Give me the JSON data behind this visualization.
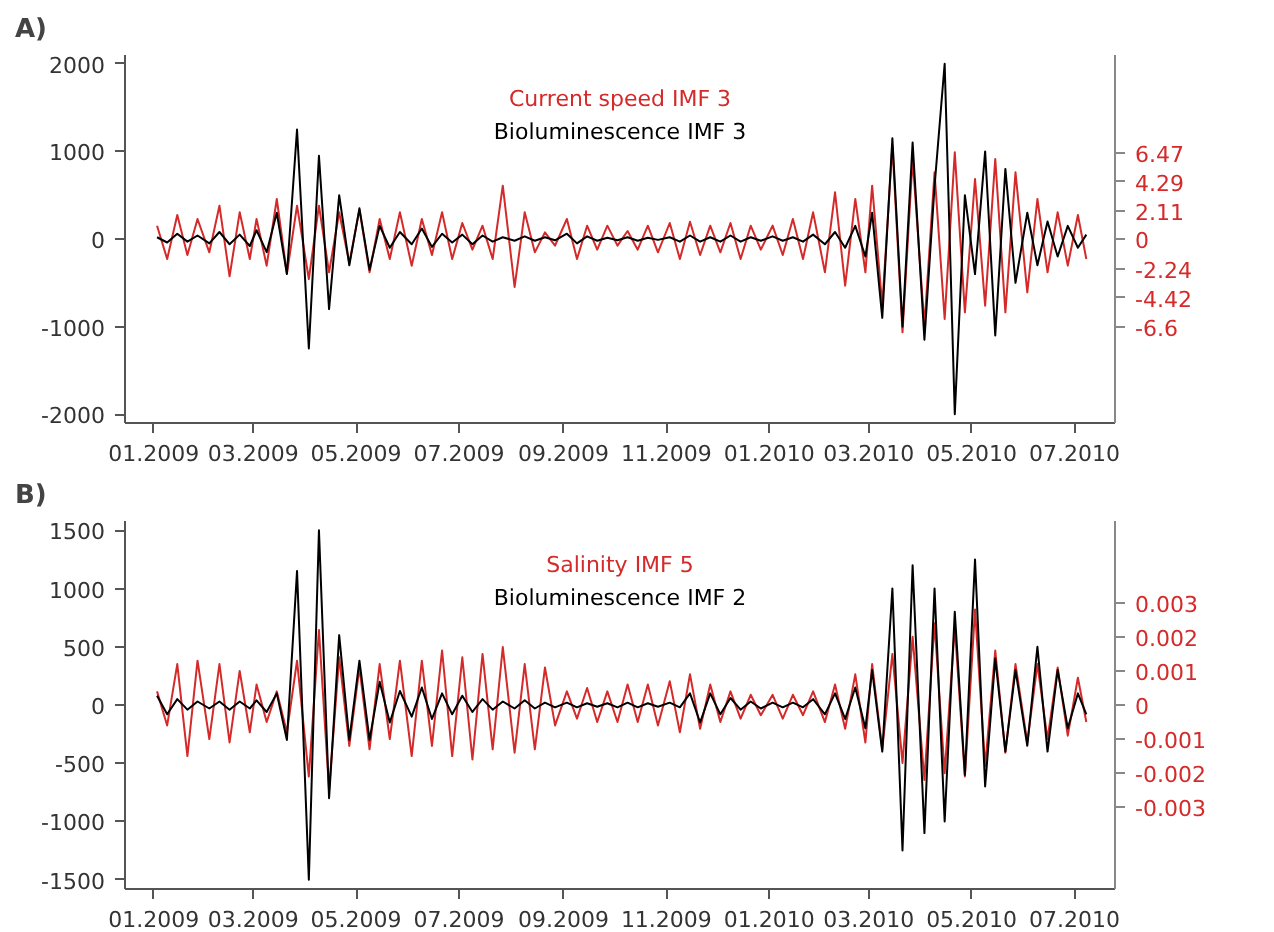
{
  "chart_data": [
    {
      "type": "line",
      "title": "A)",
      "x": [
        "2009-01-03",
        "2009-01-09",
        "2009-01-15",
        "2009-01-21",
        "2009-01-27",
        "2009-02-03",
        "2009-02-09",
        "2009-02-15",
        "2009-02-21",
        "2009-02-27",
        "2009-03-03",
        "2009-03-09",
        "2009-03-15",
        "2009-03-21",
        "2009-03-27",
        "2009-04-03",
        "2009-04-09",
        "2009-04-15",
        "2009-04-21",
        "2009-04-27",
        "2009-05-03",
        "2009-05-09",
        "2009-05-15",
        "2009-05-21",
        "2009-05-27",
        "2009-06-03",
        "2009-06-09",
        "2009-06-15",
        "2009-06-21",
        "2009-06-27",
        "2009-07-03",
        "2009-07-09",
        "2009-07-15",
        "2009-07-21",
        "2009-07-27",
        "2009-08-03",
        "2009-08-09",
        "2009-08-15",
        "2009-08-21",
        "2009-08-27",
        "2009-09-03",
        "2009-09-09",
        "2009-09-15",
        "2009-09-21",
        "2009-09-27",
        "2009-10-03",
        "2009-10-09",
        "2009-10-15",
        "2009-10-21",
        "2009-10-27",
        "2009-11-03",
        "2009-11-09",
        "2009-11-15",
        "2009-11-21",
        "2009-11-27",
        "2009-12-03",
        "2009-12-09",
        "2009-12-15",
        "2009-12-21",
        "2009-12-27",
        "2010-01-03",
        "2010-01-09",
        "2010-01-15",
        "2010-01-21",
        "2010-01-27",
        "2010-02-03",
        "2010-02-09",
        "2010-02-15",
        "2010-02-21",
        "2010-02-27",
        "2010-03-03",
        "2010-03-09",
        "2010-03-15",
        "2010-03-21",
        "2010-03-27",
        "2010-04-03",
        "2010-04-09",
        "2010-04-15",
        "2010-04-21",
        "2010-04-27",
        "2010-05-03",
        "2010-05-09",
        "2010-05-15",
        "2010-05-21",
        "2010-05-27",
        "2010-06-03",
        "2010-06-09",
        "2010-06-15",
        "2010-06-21",
        "2010-06-27",
        "2010-07-03",
        "2010-07-08"
      ],
      "xlim": [
        "2008-12-15",
        "2010-07-25"
      ],
      "xticks": [
        {
          "value": "2009-01-01",
          "label": "01.2009"
        },
        {
          "value": "2009-03-01",
          "label": "03.2009"
        },
        {
          "value": "2009-05-01",
          "label": "05.2009"
        },
        {
          "value": "2009-07-01",
          "label": "07.2009"
        },
        {
          "value": "2009-09-01",
          "label": "09.2009"
        },
        {
          "value": "2009-11-01",
          "label": "11.2009"
        },
        {
          "value": "2010-01-01",
          "label": "01.2010"
        },
        {
          "value": "2010-03-01",
          "label": "03.2010"
        },
        {
          "value": "2010-05-01",
          "label": "05.2010"
        },
        {
          "value": "2010-07-01",
          "label": "07.2010"
        }
      ],
      "ylim": [
        -2100,
        2100
      ],
      "yticks": [
        -2000,
        -1000,
        0,
        1000,
        2000
      ],
      "y2lim": [
        -13.8,
        13.8
      ],
      "y2ticks": [
        -6.6,
        -4.42,
        -2.24,
        0,
        2.11,
        4.29,
        6.47
      ],
      "series": [
        {
          "name": "Current speed IMF 3",
          "color": "#d42a2a",
          "axis": "y2",
          "values": [
            1,
            -1.5,
            1.8,
            -1.2,
            1.5,
            -1,
            2.5,
            -2.8,
            2,
            -1.5,
            1.5,
            -2,
            3,
            -2.6,
            2.5,
            -3,
            2.5,
            -2.5,
            2,
            -1.8,
            2.2,
            -2.5,
            1.5,
            -1.5,
            2,
            -2,
            1.5,
            -1.2,
            2,
            -1.5,
            1.2,
            -0.8,
            1,
            -1.5,
            4,
            -3.6,
            2,
            -1,
            0.5,
            -0.5,
            1.5,
            -1.5,
            1,
            -0.8,
            1,
            -0.5,
            0.6,
            -0.8,
            1,
            -1,
            1.2,
            -1.5,
            1.3,
            -1.2,
            1,
            -1,
            1.2,
            -1.5,
            1,
            -0.8,
            1,
            -1.2,
            1.5,
            -1.5,
            2,
            -2.5,
            3.5,
            -3.5,
            3,
            -2.5,
            4,
            -5,
            7,
            -7,
            6,
            -6.5,
            5,
            -6,
            6.5,
            -5.5,
            4.5,
            -5,
            6,
            -5.5,
            5,
            -4,
            3,
            -2.5,
            2,
            -2,
            1.8,
            -1.5
          ]
        },
        {
          "name": "Bioluminescence IMF 3",
          "color": "#000000",
          "values": [
            20,
            -40,
            60,
            -30,
            40,
            -50,
            80,
            -60,
            50,
            -80,
            100,
            -150,
            300,
            -400,
            1250,
            -1250,
            950,
            -800,
            500,
            -300,
            350,
            -350,
            150,
            -100,
            80,
            -60,
            120,
            -90,
            60,
            -40,
            50,
            -60,
            40,
            -30,
            20,
            -20,
            30,
            -20,
            20,
            -15,
            60,
            -50,
            30,
            -20,
            15,
            -15,
            20,
            -20,
            15,
            -10,
            20,
            -30,
            40,
            -30,
            20,
            -30,
            40,
            -30,
            20,
            -20,
            30,
            -20,
            20,
            -30,
            50,
            -60,
            80,
            -100,
            150,
            -200,
            300,
            -900,
            1150,
            -1000,
            1100,
            -1150,
            600,
            2000,
            -2000,
            500,
            -400,
            1000,
            -1100,
            800,
            -500,
            300,
            -300,
            200,
            -200,
            150,
            -100,
            50
          ]
        }
      ]
    },
    {
      "type": "line",
      "title": "B)",
      "x": [
        "2009-01-03",
        "2009-01-09",
        "2009-01-15",
        "2009-01-21",
        "2009-01-27",
        "2009-02-03",
        "2009-02-09",
        "2009-02-15",
        "2009-02-21",
        "2009-02-27",
        "2009-03-03",
        "2009-03-09",
        "2009-03-15",
        "2009-03-21",
        "2009-03-27",
        "2009-04-03",
        "2009-04-09",
        "2009-04-15",
        "2009-04-21",
        "2009-04-27",
        "2009-05-03",
        "2009-05-09",
        "2009-05-15",
        "2009-05-21",
        "2009-05-27",
        "2009-06-03",
        "2009-06-09",
        "2009-06-15",
        "2009-06-21",
        "2009-06-27",
        "2009-07-03",
        "2009-07-09",
        "2009-07-15",
        "2009-07-21",
        "2009-07-27",
        "2009-08-03",
        "2009-08-09",
        "2009-08-15",
        "2009-08-21",
        "2009-08-27",
        "2009-09-03",
        "2009-09-09",
        "2009-09-15",
        "2009-09-21",
        "2009-09-27",
        "2009-10-03",
        "2009-10-09",
        "2009-10-15",
        "2009-10-21",
        "2009-10-27",
        "2009-11-03",
        "2009-11-09",
        "2009-11-15",
        "2009-11-21",
        "2009-11-27",
        "2009-12-03",
        "2009-12-09",
        "2009-12-15",
        "2009-12-21",
        "2009-12-27",
        "2010-01-03",
        "2010-01-09",
        "2010-01-15",
        "2010-01-21",
        "2010-01-27",
        "2010-02-03",
        "2010-02-09",
        "2010-02-15",
        "2010-02-21",
        "2010-02-27",
        "2010-03-03",
        "2010-03-09",
        "2010-03-15",
        "2010-03-21",
        "2010-03-27",
        "2010-04-03",
        "2010-04-09",
        "2010-04-15",
        "2010-04-21",
        "2010-04-27",
        "2010-05-03",
        "2010-05-09",
        "2010-05-15",
        "2010-05-21",
        "2010-05-27",
        "2010-06-03",
        "2010-06-09",
        "2010-06-15",
        "2010-06-21",
        "2010-06-27",
        "2010-07-03",
        "2010-07-08"
      ],
      "xlim": [
        "2008-12-15",
        "2010-07-25"
      ],
      "xticks": [
        {
          "value": "2009-01-01",
          "label": "01.2009"
        },
        {
          "value": "2009-03-01",
          "label": "03.2009"
        },
        {
          "value": "2009-05-01",
          "label": "05.2009"
        },
        {
          "value": "2009-07-01",
          "label": "07.2009"
        },
        {
          "value": "2009-09-01",
          "label": "09.2009"
        },
        {
          "value": "2009-11-01",
          "label": "11.2009"
        },
        {
          "value": "2010-01-01",
          "label": "01.2010"
        },
        {
          "value": "2010-03-01",
          "label": "03.2010"
        },
        {
          "value": "2010-05-01",
          "label": "05.2010"
        },
        {
          "value": "2010-07-01",
          "label": "07.2010"
        }
      ],
      "ylim": [
        -1580,
        1580
      ],
      "yticks": [
        -1500,
        -1000,
        -500,
        0,
        500,
        1000,
        1500
      ],
      "y2lim": [
        -0.0054,
        0.0054
      ],
      "y2ticks": [
        -0.003,
        -0.002,
        -0.001,
        0,
        0.001,
        0.002,
        0.003
      ],
      "series": [
        {
          "name": "Salinity IMF 5",
          "color": "#d42a2a",
          "axis": "y2",
          "values": [
            0.0004,
            -0.0006,
            0.0012,
            -0.0015,
            0.0013,
            -0.001,
            0.0012,
            -0.0011,
            0.001,
            -0.0008,
            0.0006,
            -0.0005,
            0.0004,
            -0.0008,
            0.0013,
            -0.0021,
            0.0022,
            -0.0025,
            0.0014,
            -0.0012,
            0.0011,
            -0.0013,
            0.0012,
            -0.001,
            0.0013,
            -0.0015,
            0.0013,
            -0.0012,
            0.0016,
            -0.0015,
            0.0014,
            -0.0016,
            0.0015,
            -0.0013,
            0.0017,
            -0.0014,
            0.0012,
            -0.0013,
            0.0011,
            -0.0006,
            0.0004,
            -0.0004,
            0.0005,
            -0.0005,
            0.0004,
            -0.0005,
            0.0006,
            -0.0005,
            0.0006,
            -0.0006,
            0.0007,
            -0.0008,
            0.0009,
            -0.0007,
            0.0006,
            -0.0005,
            0.0004,
            -0.0004,
            0.0003,
            -0.0003,
            0.0003,
            -0.0004,
            0.0003,
            -0.0003,
            0.0004,
            -0.0005,
            0.0006,
            -0.0007,
            0.0009,
            -0.0011,
            0.0012,
            -0.0013,
            0.0015,
            -0.0017,
            0.002,
            -0.0022,
            0.0024,
            -0.002,
            0.0023,
            -0.0021,
            0.0028,
            -0.0018,
            0.0016,
            -0.0014,
            0.0012,
            -0.0011,
            0.0012,
            -0.001,
            0.0011,
            -0.0009,
            0.0008,
            -0.0005
          ]
        },
        {
          "name": "Bioluminescence IMF 2",
          "color": "#000000",
          "values": [
            80,
            -80,
            50,
            -40,
            30,
            -30,
            30,
            -40,
            30,
            -30,
            40,
            -60,
            100,
            -300,
            1150,
            -1500,
            1500,
            -800,
            600,
            -300,
            380,
            -300,
            200,
            -150,
            120,
            -100,
            150,
            -120,
            100,
            -80,
            80,
            -60,
            50,
            -40,
            30,
            -30,
            40,
            -30,
            20,
            -20,
            20,
            -20,
            15,
            -15,
            15,
            -20,
            20,
            -20,
            15,
            -15,
            20,
            -20,
            100,
            -150,
            100,
            -80,
            60,
            -40,
            30,
            -30,
            20,
            -20,
            20,
            -20,
            50,
            -80,
            100,
            -120,
            150,
            -200,
            300,
            -400,
            1000,
            -1250,
            1200,
            -1100,
            1000,
            -1000,
            800,
            -600,
            1250,
            -700,
            400,
            -400,
            300,
            -350,
            500,
            -400,
            300,
            -200,
            100,
            -80
          ]
        }
      ]
    }
  ]
}
